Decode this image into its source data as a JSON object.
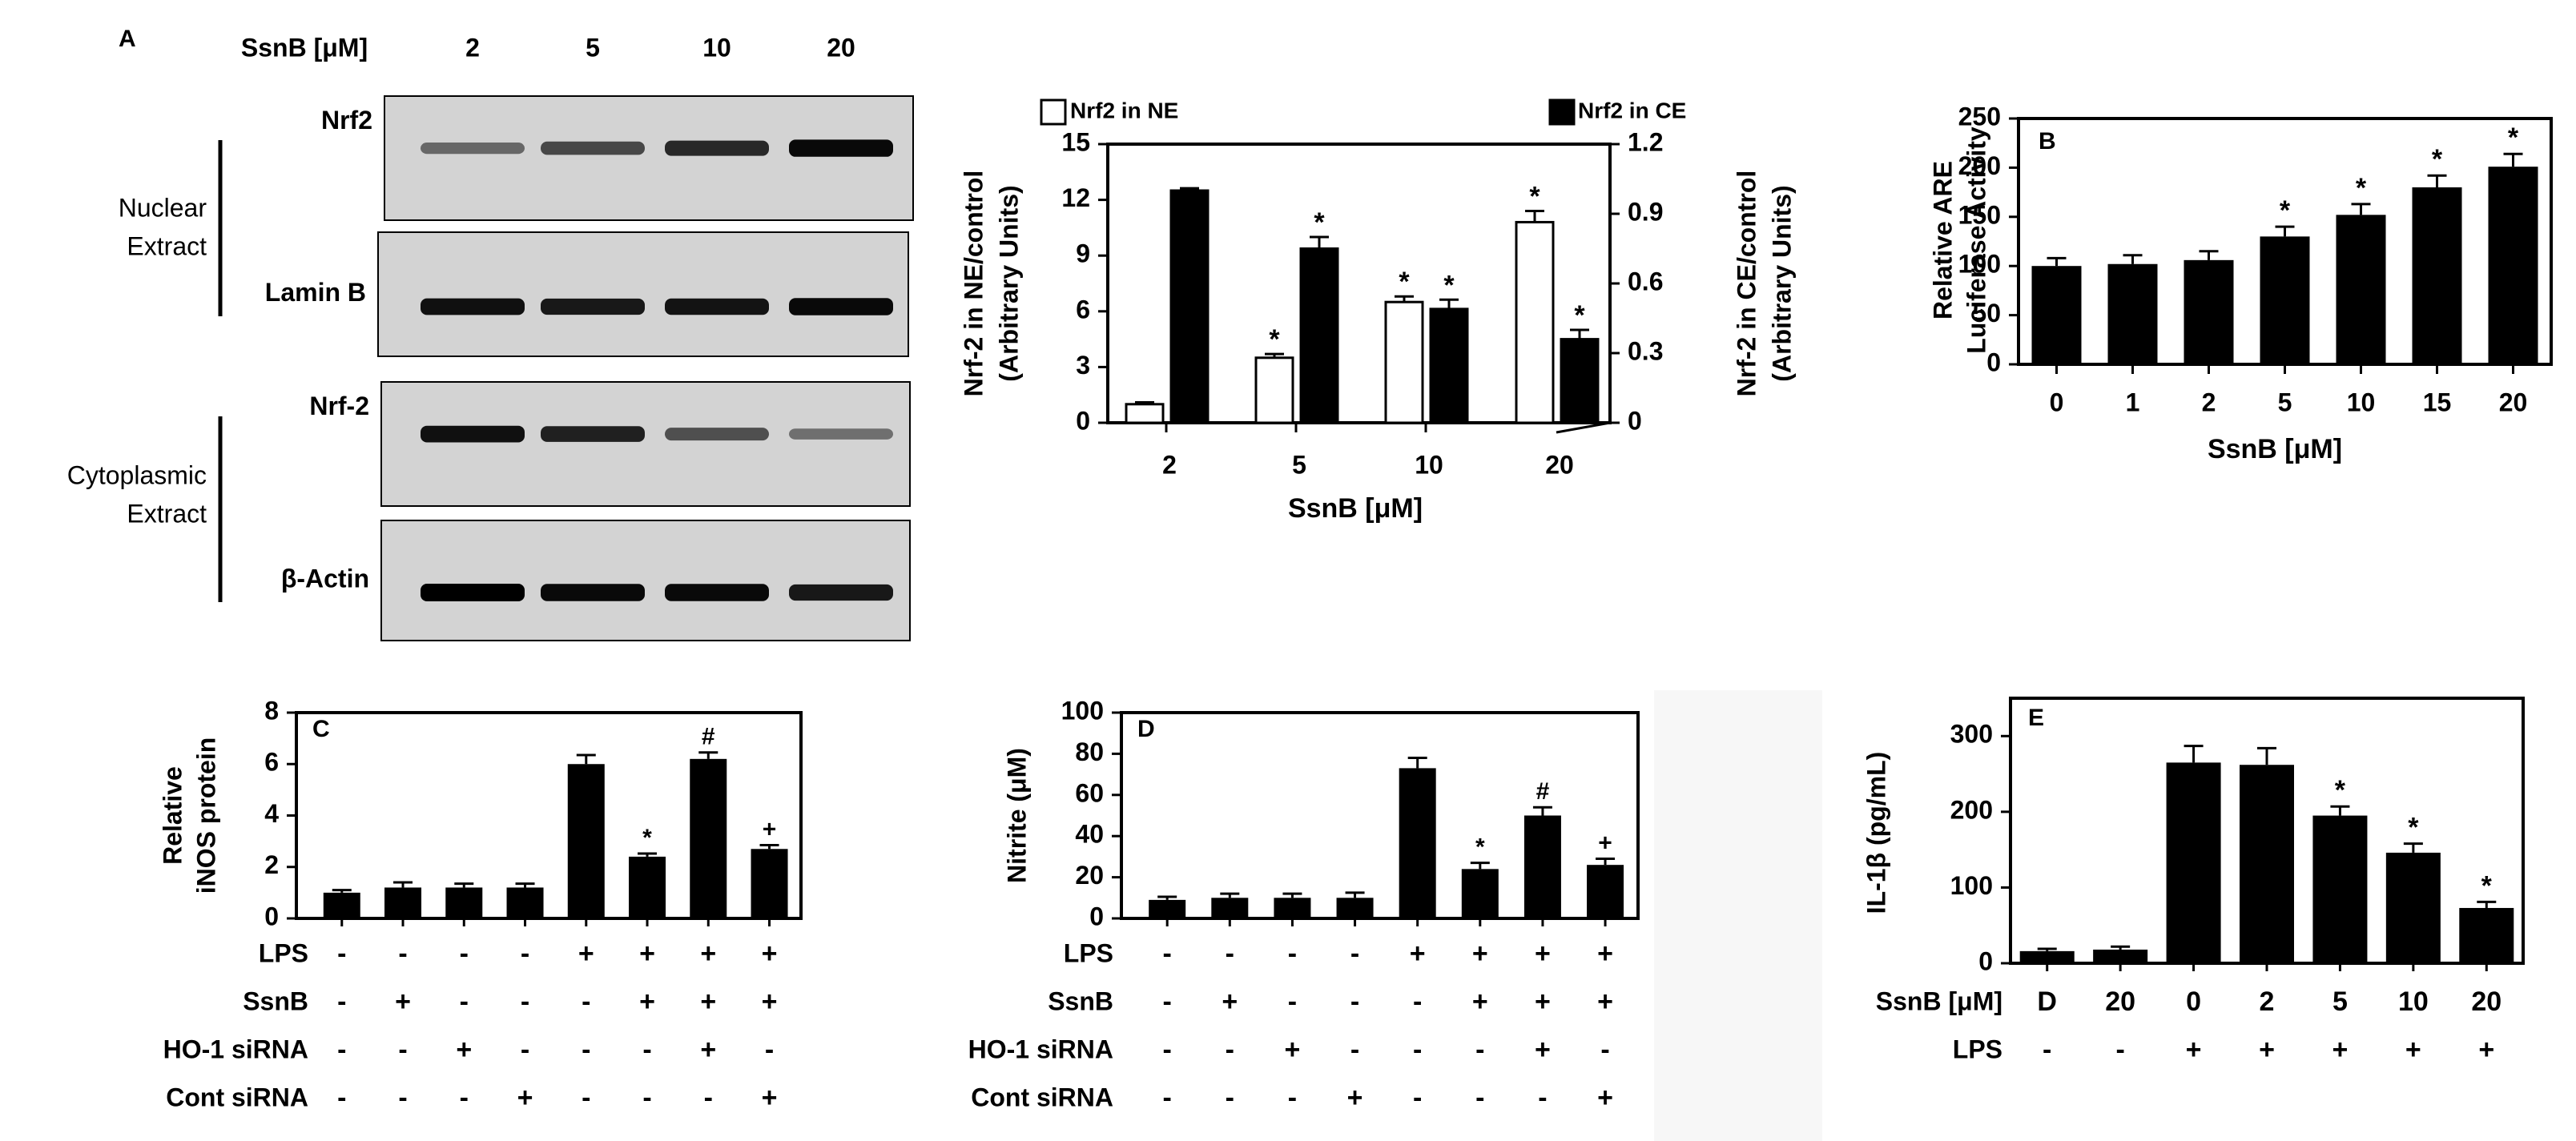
{
  "panel_labels": {
    "A": "A",
    "B": "B",
    "C": "C",
    "D": "D",
    "E": "E"
  },
  "western_blot": {
    "dose_label": "SsnB [μM]",
    "doses": [
      "2",
      "5",
      "10",
      "20"
    ],
    "group_nuclear": [
      "Nuclear",
      "Extract"
    ],
    "group_cytoplasmic": [
      "Cytoplasmic",
      "Extract"
    ],
    "bands": [
      {
        "label": "Nrf2",
        "intensity": [
          0.35,
          0.55,
          0.75,
          0.95
        ]
      },
      {
        "label": "Lamin B",
        "intensity": [
          0.9,
          0.85,
          0.88,
          0.95
        ]
      },
      {
        "label": "Nrf-2",
        "intensity": [
          0.9,
          0.8,
          0.5,
          0.3
        ]
      },
      {
        "label": "β-Actin",
        "intensity": [
          1.0,
          0.95,
          0.95,
          0.85
        ]
      }
    ]
  },
  "colors": {
    "bar": "#000000",
    "axis": "#000000",
    "blot_bg": "#d3d3d3",
    "open_bar": "#ffffff"
  },
  "chart_data": [
    {
      "id": "A-quant",
      "type": "bar",
      "categories": [
        "2",
        "5",
        "10",
        "20"
      ],
      "xlabel": "SsnB [μM]",
      "ylabel_left": [
        "Nrf-2 in NE/control",
        "(Arbitrary Units)"
      ],
      "ylabel_right": [
        "Nrf-2 in CE/control",
        "(Arbitrary Units)"
      ],
      "ylim_left": [
        0,
        15
      ],
      "yticks_left": [
        "0",
        "3",
        "6",
        "9",
        "12",
        "15"
      ],
      "ylim_right": [
        0,
        1.2
      ],
      "yticks_right": [
        "0",
        "0.3",
        "0.6",
        "0.9",
        "1.2"
      ],
      "legend": [
        "Nrf2 in NE",
        "Nrf2 in CE"
      ],
      "series": [
        {
          "name": "Nrf2 in NE",
          "axis": "left",
          "fill": "white",
          "values": [
            1.0,
            3.5,
            6.5,
            10.8
          ],
          "errors": [
            0.1,
            0.2,
            0.3,
            0.6
          ],
          "stars": [
            "",
            "*",
            "*",
            "*"
          ]
        },
        {
          "name": "Nrf2 in CE",
          "axis": "right",
          "fill": "black",
          "values": [
            1.0,
            0.75,
            0.49,
            0.36
          ],
          "errors": [
            0.01,
            0.05,
            0.04,
            0.04
          ],
          "stars": [
            "",
            "*",
            "*",
            "*"
          ]
        }
      ]
    },
    {
      "id": "B",
      "type": "bar",
      "categories": [
        "0",
        "1",
        "2",
        "5",
        "10",
        "15",
        "20"
      ],
      "values": [
        100,
        102,
        106,
        130,
        152,
        180,
        201
      ],
      "errors": [
        8,
        9,
        9,
        10,
        11,
        12,
        13
      ],
      "stars": [
        "",
        "",
        "",
        "*",
        "*",
        "*",
        "*"
      ],
      "xlabel": "SsnB [μM]",
      "ylabel": [
        "Relative ARE",
        "Luciferase Activity"
      ],
      "ylim": [
        0,
        250
      ],
      "yticks": [
        "0",
        "50",
        "100",
        "150",
        "200",
        "250"
      ]
    },
    {
      "id": "C",
      "type": "bar",
      "values": [
        1.0,
        1.2,
        1.2,
        1.2,
        6.0,
        2.4,
        6.2,
        2.7
      ],
      "errors": [
        0.1,
        0.2,
        0.15,
        0.15,
        0.35,
        0.12,
        0.25,
        0.15
      ],
      "stars": [
        "",
        "",
        "",
        "",
        "",
        "*",
        "#",
        "+"
      ],
      "ylabel": [
        "Relative",
        "iNOS protein"
      ],
      "ylim": [
        0,
        8
      ],
      "yticks": [
        "0",
        "2",
        "4",
        "6",
        "8"
      ],
      "rows": [
        {
          "label": "LPS",
          "signs": [
            "-",
            "-",
            "-",
            "-",
            "+",
            "+",
            "+",
            "+"
          ]
        },
        {
          "label": "SsnB",
          "signs": [
            "-",
            "+",
            "-",
            "-",
            "-",
            "+",
            "+",
            "+"
          ]
        },
        {
          "label": "HO-1 siRNA",
          "signs": [
            "-",
            "-",
            "+",
            "-",
            "-",
            "-",
            "+",
            "-"
          ]
        },
        {
          "label": "Cont siRNA",
          "signs": [
            "-",
            "-",
            "-",
            "+",
            "-",
            "-",
            "-",
            "+"
          ]
        }
      ]
    },
    {
      "id": "D",
      "type": "bar",
      "values": [
        9,
        10,
        10,
        10,
        73,
        24,
        50,
        26
      ],
      "errors": [
        1.5,
        2,
        2,
        2.5,
        5,
        3,
        4,
        3
      ],
      "stars": [
        "",
        "",
        "",
        "",
        "",
        "*",
        "#",
        "+"
      ],
      "ylabel": [
        "Nitrite (μM)"
      ],
      "ylim": [
        0,
        100
      ],
      "yticks": [
        "0",
        "20",
        "40",
        "60",
        "80",
        "100"
      ],
      "rows": [
        {
          "label": "LPS",
          "signs": [
            "-",
            "-",
            "-",
            "-",
            "+",
            "+",
            "+",
            "+"
          ]
        },
        {
          "label": "SsnB",
          "signs": [
            "-",
            "+",
            "-",
            "-",
            "-",
            "+",
            "+",
            "+"
          ]
        },
        {
          "label": "HO-1 siRNA",
          "signs": [
            "-",
            "-",
            "+",
            "-",
            "-",
            "-",
            "+",
            "-"
          ]
        },
        {
          "label": "Cont siRNA",
          "signs": [
            "-",
            "-",
            "-",
            "+",
            "-",
            "-",
            "-",
            "+"
          ]
        }
      ]
    },
    {
      "id": "E",
      "type": "bar",
      "values": [
        16,
        18,
        265,
        262,
        195,
        146,
        73
      ],
      "errors": [
        3,
        4,
        22,
        22,
        12,
        12,
        8
      ],
      "stars": [
        "",
        "",
        "",
        "",
        "*",
        "*",
        "*"
      ],
      "ylabel": [
        "IL-1β (pg/mL)"
      ],
      "ylim": [
        0,
        350
      ],
      "yticks": [
        "0",
        "100",
        "200",
        "300"
      ],
      "rows": [
        {
          "label": "SsnB [μM]",
          "signs": [
            "D",
            "20",
            "0",
            "2",
            "5",
            "10",
            "20"
          ]
        },
        {
          "label": "LPS",
          "signs": [
            "-",
            "-",
            "+",
            "+",
            "+",
            "+",
            "+"
          ]
        }
      ]
    }
  ]
}
